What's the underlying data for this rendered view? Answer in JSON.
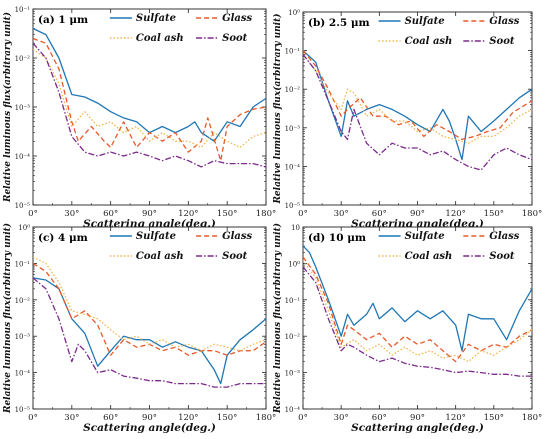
{
  "chart_data": [
    {
      "type": "line",
      "title": "(a) 1 μm",
      "xlabel": "Scattering angle(deg.)",
      "ylabel": "Relative luminous flux(arbitrary unit)",
      "xlim": [
        0,
        180
      ],
      "yscale": "log",
      "ylim_exponent": [
        -5,
        -1
      ],
      "yticks": [
        "10⁻⁵",
        "10⁻⁴",
        "10⁻³",
        "10⁻²",
        "10⁻¹"
      ],
      "xticks": [
        "0°",
        "30°",
        "60°",
        "90°",
        "120°",
        "150°",
        "180°"
      ],
      "legend_position": "top",
      "series": [
        {
          "name": "Sulfate",
          "color": "#1f77b4",
          "dash": "solid",
          "x": [
            0,
            10,
            20,
            30,
            40,
            50,
            60,
            70,
            80,
            90,
            100,
            110,
            120,
            125,
            130,
            140,
            150,
            160,
            170,
            180
          ],
          "y": [
            0.04,
            0.03,
            0.01,
            0.0018,
            0.0016,
            0.0012,
            0.0008,
            0.0006,
            0.0005,
            0.0003,
            0.0004,
            0.0003,
            0.0004,
            0.0005,
            0.0003,
            0.0002,
            0.0005,
            0.0004,
            0.001,
            0.0015
          ]
        },
        {
          "name": "Glass",
          "color": "#e8582a",
          "dash": "dashed",
          "x": [
            0,
            10,
            20,
            30,
            35,
            45,
            55,
            60,
            70,
            80,
            90,
            100,
            110,
            120,
            130,
            135,
            145,
            150,
            160,
            170,
            180
          ],
          "y": [
            0.025,
            0.02,
            0.006,
            0.0005,
            0.0002,
            0.0004,
            0.0002,
            0.00015,
            0.0005,
            0.00015,
            0.0003,
            0.0002,
            0.0003,
            0.00012,
            0.0002,
            0.0006,
            8e-05,
            0.0004,
            0.0007,
            0.0009,
            0.001
          ]
        },
        {
          "name": "Coal ash",
          "color": "#f0b44b",
          "dash": "dotted",
          "x": [
            0,
            10,
            20,
            30,
            40,
            50,
            60,
            70,
            80,
            90,
            100,
            110,
            120,
            130,
            140,
            150,
            160,
            170,
            180
          ],
          "y": [
            0.015,
            0.01,
            0.003,
            0.0004,
            0.0008,
            0.0004,
            0.0005,
            0.0003,
            0.0004,
            0.0002,
            0.0003,
            0.0002,
            0.0002,
            0.00015,
            0.0003,
            0.0002,
            0.00015,
            0.00025,
            0.0003
          ]
        },
        {
          "name": "Soot",
          "color": "#7b2a8c",
          "dash": "dashdot",
          "x": [
            0,
            10,
            20,
            30,
            40,
            50,
            60,
            70,
            80,
            90,
            100,
            110,
            120,
            130,
            140,
            150,
            160,
            170,
            180
          ],
          "y": [
            0.02,
            0.01,
            0.002,
            0.00025,
            0.00012,
            0.0001,
            0.00012,
            0.0001,
            0.00012,
            0.0001,
            8e-05,
            0.0001,
            8e-05,
            6e-05,
            8e-05,
            7e-05,
            7e-05,
            7e-05,
            6e-05
          ]
        }
      ]
    },
    {
      "type": "line",
      "title": "(b) 2.5 μm",
      "xlabel": "Scattering angle(deg.)",
      "ylabel": "Relative luminous flux(arbitrary unit)",
      "xlim": [
        0,
        180
      ],
      "yscale": "log",
      "ylim_exponent": [
        -5,
        0
      ],
      "yticks": [
        "10⁻⁵",
        "10⁻⁴",
        "10⁻³",
        "10⁻²",
        "10⁻¹",
        "10⁰"
      ],
      "xticks": [
        "0°",
        "30°",
        "60°",
        "90°",
        "120°",
        "150°",
        "180°"
      ],
      "legend_position": "top",
      "series": [
        {
          "name": "Sulfate",
          "color": "#1f77b4",
          "dash": "solid",
          "x": [
            0,
            10,
            20,
            30,
            35,
            40,
            50,
            60,
            70,
            80,
            90,
            100,
            110,
            115,
            120,
            125,
            130,
            140,
            150,
            160,
            170,
            180
          ],
          "y": [
            0.1,
            0.05,
            0.005,
            0.0006,
            0.005,
            0.002,
            0.003,
            0.004,
            0.003,
            0.002,
            0.0012,
            0.0008,
            0.003,
            0.0015,
            0.0005,
            0.00015,
            0.002,
            0.0008,
            0.0015,
            0.003,
            0.006,
            0.01
          ]
        },
        {
          "name": "Glass",
          "color": "#e8582a",
          "dash": "dashed",
          "x": [
            0,
            10,
            20,
            30,
            35,
            45,
            55,
            65,
            75,
            85,
            95,
            105,
            115,
            125,
            135,
            145,
            155,
            165,
            180
          ],
          "y": [
            0.1,
            0.04,
            0.01,
            0.002,
            0.003,
            0.006,
            0.002,
            0.002,
            0.0012,
            0.0015,
            0.0006,
            0.0012,
            0.0008,
            0.0005,
            0.0006,
            0.0008,
            0.001,
            0.0025,
            0.005
          ]
        },
        {
          "name": "Coal ash",
          "color": "#f0b44b",
          "dash": "dotted",
          "x": [
            0,
            10,
            20,
            30,
            35,
            40,
            50,
            60,
            70,
            80,
            90,
            100,
            110,
            120,
            130,
            140,
            150,
            160,
            170,
            180
          ],
          "y": [
            0.08,
            0.03,
            0.008,
            0.003,
            0.01,
            0.008,
            0.002,
            0.003,
            0.0015,
            0.0015,
            0.0008,
            0.001,
            0.0006,
            0.0005,
            0.0004,
            0.0006,
            0.0006,
            0.001,
            0.002,
            0.003
          ]
        },
        {
          "name": "Soot",
          "color": "#7b2a8c",
          "dash": "dashdot",
          "x": [
            0,
            10,
            20,
            30,
            35,
            40,
            50,
            60,
            70,
            80,
            90,
            100,
            110,
            120,
            130,
            140,
            150,
            160,
            170,
            180
          ],
          "y": [
            0.08,
            0.03,
            0.005,
            0.0008,
            0.0005,
            0.003,
            0.0004,
            0.0002,
            0.0004,
            0.0003,
            0.0003,
            0.0002,
            0.00025,
            0.00015,
            0.0001,
            8e-05,
            0.0002,
            0.0003,
            0.0002,
            0.00015
          ]
        }
      ]
    },
    {
      "type": "line",
      "title": "(c) 4 μm",
      "xlabel": "Scattering angle(deg.)",
      "ylabel": "Relative luminous flux(arbitrary unit)",
      "xlim": [
        0,
        180
      ],
      "yscale": "log",
      "ylim_exponent": [
        -5,
        0
      ],
      "yticks": [
        "10⁻⁵",
        "10⁻⁴",
        "10⁻³",
        "10⁻²",
        "10⁻¹",
        "10⁰"
      ],
      "xticks": [
        "0°",
        "30°",
        "60°",
        "90°",
        "120°",
        "150°",
        "180°"
      ],
      "legend_position": "top",
      "series": [
        {
          "name": "Sulfate",
          "color": "#1f77b4",
          "dash": "solid",
          "x": [
            0,
            10,
            20,
            30,
            40,
            50,
            60,
            70,
            80,
            90,
            100,
            110,
            120,
            130,
            140,
            145,
            150,
            160,
            170,
            180
          ],
          "y": [
            0.04,
            0.035,
            0.02,
            0.003,
            0.0012,
            0.00015,
            0.0004,
            0.001,
            0.0008,
            0.0008,
            0.0005,
            0.0007,
            0.0005,
            0.0004,
            0.00012,
            5e-05,
            0.0003,
            0.0008,
            0.0015,
            0.003
          ]
        },
        {
          "name": "Glass",
          "color": "#e8582a",
          "dash": "dashed",
          "x": [
            0,
            10,
            20,
            30,
            40,
            50,
            60,
            70,
            80,
            90,
            100,
            110,
            120,
            130,
            140,
            150,
            160,
            170,
            180
          ],
          "y": [
            0.1,
            0.06,
            0.02,
            0.003,
            0.005,
            0.002,
            0.0003,
            0.0008,
            0.0005,
            0.0006,
            0.0004,
            0.0005,
            0.0003,
            0.0004,
            0.0004,
            0.0003,
            0.0004,
            0.0004,
            0.0007
          ]
        },
        {
          "name": "Coal ash",
          "color": "#f0b44b",
          "dash": "dotted",
          "x": [
            0,
            10,
            20,
            30,
            40,
            50,
            60,
            70,
            80,
            90,
            100,
            110,
            120,
            130,
            140,
            150,
            160,
            170,
            180
          ],
          "y": [
            0.15,
            0.1,
            0.03,
            0.005,
            0.004,
            0.003,
            0.0015,
            0.0008,
            0.001,
            0.0006,
            0.0008,
            0.0005,
            0.0006,
            0.0004,
            0.0006,
            0.0005,
            0.0004,
            0.0006,
            0.0008
          ]
        },
        {
          "name": "Soot",
          "color": "#7b2a8c",
          "dash": "dashdot",
          "x": [
            0,
            10,
            20,
            30,
            35,
            40,
            50,
            60,
            70,
            80,
            90,
            100,
            110,
            120,
            130,
            140,
            150,
            160,
            170,
            180
          ],
          "y": [
            0.04,
            0.02,
            0.003,
            0.0002,
            0.0006,
            0.0004,
            0.0001,
            0.00012,
            8e-05,
            7e-05,
            6e-05,
            6e-05,
            5e-05,
            5e-05,
            5e-05,
            4e-05,
            4e-05,
            5e-05,
            5e-05,
            5e-05
          ]
        }
      ]
    },
    {
      "type": "line",
      "title": "(d) 10 μm",
      "xlabel": "Scattering angle(deg.)",
      "ylabel": "Relative luminous flux(arbitrary unit)",
      "xlim": [
        0,
        180
      ],
      "yscale": "log",
      "ylim_exponent": [
        -4,
        1
      ],
      "yticks": [
        "10⁻⁴",
        "10⁻³",
        "10⁻²",
        "10⁻¹",
        "10⁰",
        "10"
      ],
      "xticks": [
        "0°",
        "30°",
        "60°",
        "90°",
        "120°",
        "150°",
        "180°"
      ],
      "legend_position": "top",
      "series": [
        {
          "name": "Sulfate",
          "color": "#1f77b4",
          "dash": "solid",
          "x": [
            0,
            5,
            10,
            20,
            30,
            35,
            40,
            50,
            55,
            60,
            70,
            80,
            90,
            100,
            110,
            120,
            125,
            130,
            140,
            150,
            160,
            170,
            180
          ],
          "y": [
            3,
            2,
            0.8,
            0.1,
            0.01,
            0.04,
            0.02,
            0.04,
            0.08,
            0.03,
            0.06,
            0.025,
            0.05,
            0.03,
            0.05,
            0.02,
            0.004,
            0.04,
            0.03,
            0.03,
            0.008,
            0.05,
            0.2
          ]
        },
        {
          "name": "Glass",
          "color": "#e8582a",
          "dash": "dashed",
          "x": [
            0,
            10,
            20,
            30,
            35,
            40,
            50,
            60,
            70,
            80,
            90,
            100,
            110,
            120,
            130,
            140,
            150,
            160,
            170,
            180
          ],
          "y": [
            1.5,
            0.5,
            0.08,
            0.006,
            0.02,
            0.015,
            0.008,
            0.012,
            0.005,
            0.01,
            0.006,
            0.008,
            0.004,
            0.002,
            0.006,
            0.004,
            0.006,
            0.005,
            0.01,
            0.015
          ]
        },
        {
          "name": "Coal ash",
          "color": "#f0b44b",
          "dash": "dotted",
          "x": [
            0,
            10,
            20,
            30,
            40,
            50,
            60,
            70,
            80,
            90,
            100,
            110,
            120,
            130,
            140,
            150,
            160,
            170,
            180
          ],
          "y": [
            1.2,
            0.4,
            0.05,
            0.005,
            0.008,
            0.004,
            0.006,
            0.003,
            0.005,
            0.003,
            0.004,
            0.0025,
            0.003,
            0.002,
            0.004,
            0.003,
            0.005,
            0.008,
            0.015
          ]
        },
        {
          "name": "Soot",
          "color": "#7b2a8c",
          "dash": "dashdot",
          "x": [
            0,
            10,
            20,
            30,
            35,
            40,
            50,
            60,
            70,
            80,
            90,
            100,
            110,
            120,
            130,
            140,
            150,
            160,
            170,
            180
          ],
          "y": [
            0.8,
            0.3,
            0.03,
            0.004,
            0.006,
            0.005,
            0.003,
            0.002,
            0.0025,
            0.0018,
            0.0015,
            0.0014,
            0.0012,
            0.001,
            0.0011,
            0.001,
            0.0009,
            0.0009,
            0.0008,
            0.0008
          ]
        }
      ]
    }
  ]
}
